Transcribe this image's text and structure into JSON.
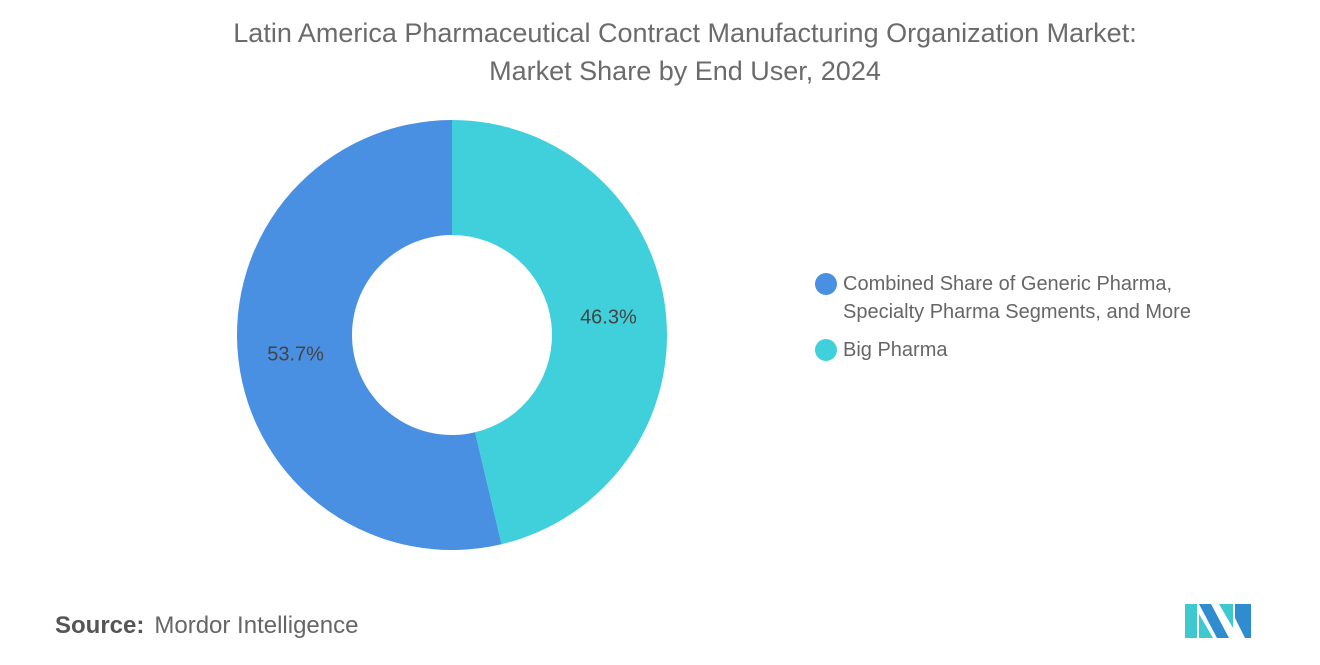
{
  "title_line1": "Latin America Pharmaceutical Contract Manufacturing Organization Market:",
  "title_line2": "Market Share by End User, 2024",
  "chart_data": {
    "type": "pie",
    "style": "donut",
    "title": "Latin America Pharmaceutical Contract Manufacturing Organization Market: Market Share by End User, 2024",
    "categories": [
      "Combined Share of Generic Pharma, Specialty Pharma Segments, and More",
      "Big Pharma"
    ],
    "values": [
      53.7,
      46.3
    ],
    "labels": [
      "53.7%",
      "46.3%"
    ],
    "colors": [
      "#4a90e2",
      "#40d0db"
    ],
    "legend_position": "right"
  },
  "legend": {
    "items": [
      {
        "line1": "Combined Share of Generic Pharma,",
        "line2": "Specialty Pharma Segments, and More",
        "color": "#4a90e2"
      },
      {
        "line1": "Big Pharma",
        "line2": "",
        "color": "#40d0db"
      }
    ]
  },
  "source": {
    "label": "Source:",
    "value": "Mordor Intelligence"
  },
  "logo": {
    "text": "Mordor Intelligence",
    "colors": [
      "#2f8ccf",
      "#3fc9cf"
    ]
  }
}
